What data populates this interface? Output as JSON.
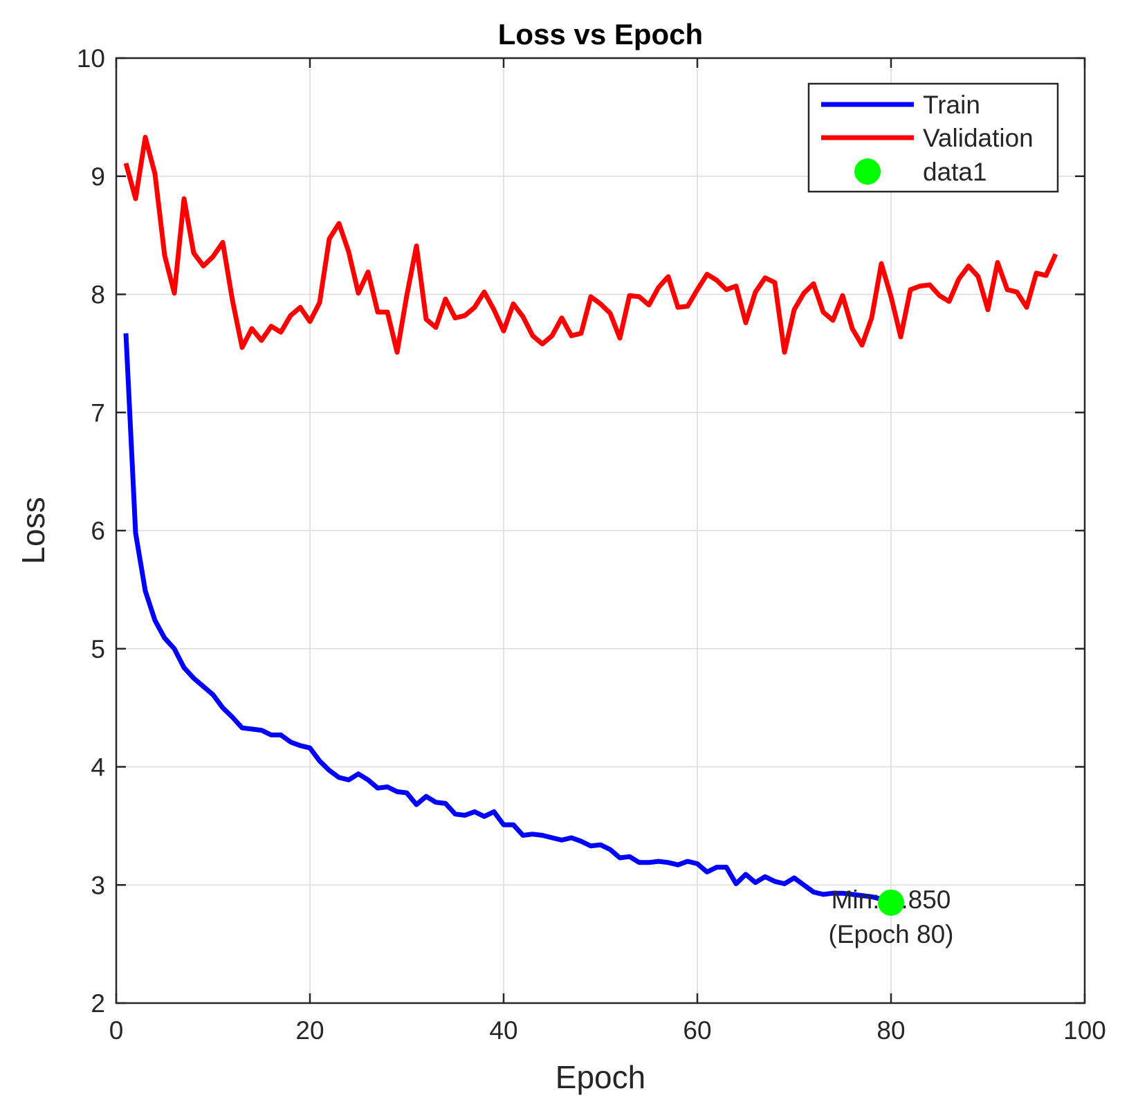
{
  "chart_data": {
    "type": "line",
    "title": "Loss vs Epoch",
    "xlabel": "Epoch",
    "ylabel": "Loss",
    "xlim": [
      0,
      100
    ],
    "ylim": [
      2,
      10
    ],
    "xticks": [
      0,
      20,
      40,
      60,
      80,
      100
    ],
    "yticks": [
      2,
      3,
      4,
      5,
      6,
      7,
      8,
      9,
      10
    ],
    "grid": true,
    "legend_position": "top-right",
    "series": [
      {
        "name": "Train",
        "color": "#0000ff",
        "x": [
          1,
          2,
          3,
          4,
          5,
          6,
          7,
          8,
          9,
          10,
          11,
          12,
          13,
          14,
          15,
          16,
          17,
          18,
          19,
          20,
          21,
          22,
          23,
          24,
          25,
          26,
          27,
          28,
          29,
          30,
          31,
          32,
          33,
          34,
          35,
          36,
          37,
          38,
          39,
          40,
          41,
          42,
          43,
          44,
          45,
          46,
          47,
          48,
          49,
          50,
          51,
          52,
          53,
          54,
          55,
          56,
          57,
          58,
          59,
          60,
          61,
          62,
          63,
          64,
          65,
          66,
          67,
          68,
          69,
          70,
          71,
          72,
          73,
          74,
          75,
          76,
          77,
          78,
          79,
          80
        ],
        "values": [
          7.67,
          5.98,
          5.49,
          5.24,
          5.09,
          5.0,
          4.84,
          4.75,
          4.68,
          4.61,
          4.5,
          4.42,
          4.33,
          4.32,
          4.31,
          4.27,
          4.27,
          4.21,
          4.18,
          4.16,
          4.05,
          3.97,
          3.91,
          3.89,
          3.94,
          3.89,
          3.82,
          3.83,
          3.79,
          3.78,
          3.68,
          3.75,
          3.7,
          3.69,
          3.6,
          3.59,
          3.62,
          3.58,
          3.62,
          3.51,
          3.51,
          3.42,
          3.43,
          3.42,
          3.4,
          3.38,
          3.4,
          3.37,
          3.33,
          3.34,
          3.3,
          3.23,
          3.24,
          3.19,
          3.19,
          3.2,
          3.19,
          3.17,
          3.2,
          3.18,
          3.11,
          3.15,
          3.15,
          3.01,
          3.09,
          3.02,
          3.07,
          3.03,
          3.01,
          3.06,
          3.0,
          2.94,
          2.92,
          2.93,
          2.93,
          2.92,
          2.91,
          2.9,
          2.88,
          2.85
        ]
      },
      {
        "name": "Validation",
        "color": "#ff0000",
        "x": [
          1,
          2,
          3,
          4,
          5,
          6,
          7,
          8,
          9,
          10,
          11,
          12,
          13,
          14,
          15,
          16,
          17,
          18,
          19,
          20,
          21,
          22,
          23,
          24,
          25,
          26,
          27,
          28,
          29,
          30,
          31,
          32,
          33,
          34,
          35,
          36,
          37,
          38,
          39,
          40,
          41,
          42,
          43,
          44,
          45,
          46,
          47,
          48,
          49,
          50,
          51,
          52,
          53,
          54,
          55,
          56,
          57,
          58,
          59,
          60,
          61,
          62,
          63,
          64,
          65,
          66,
          67,
          68,
          69,
          70,
          71,
          72,
          73,
          74,
          75,
          76,
          77,
          78,
          79,
          80,
          81,
          82,
          83,
          84,
          85,
          86,
          87,
          88,
          89,
          90,
          91,
          92,
          93,
          94,
          95,
          96,
          97
        ],
        "values": [
          9.11,
          8.81,
          9.33,
          9.02,
          8.33,
          8.01,
          8.81,
          8.35,
          8.24,
          8.32,
          8.44,
          7.95,
          7.55,
          7.71,
          7.61,
          7.73,
          7.68,
          7.82,
          7.89,
          7.77,
          7.93,
          8.47,
          8.6,
          8.36,
          8.01,
          8.19,
          7.85,
          7.85,
          7.51,
          7.99,
          8.41,
          7.79,
          7.72,
          7.96,
          7.8,
          7.82,
          7.89,
          8.02,
          7.87,
          7.69,
          7.92,
          7.81,
          7.65,
          7.58,
          7.65,
          7.8,
          7.65,
          7.67,
          7.98,
          7.92,
          7.84,
          7.63,
          7.99,
          7.98,
          7.91,
          8.06,
          8.15,
          7.89,
          7.9,
          8.04,
          8.17,
          8.12,
          8.04,
          8.07,
          7.76,
          8.02,
          8.14,
          8.1,
          7.51,
          7.87,
          8.01,
          8.09,
          7.85,
          7.78,
          7.99,
          7.71,
          7.57,
          7.8,
          8.26,
          7.98,
          7.64,
          8.04,
          8.07,
          8.08,
          7.99,
          7.94,
          8.13,
          8.24,
          8.15,
          7.87,
          8.27,
          8.04,
          8.02,
          7.89,
          8.18,
          8.16,
          8.34
        ]
      },
      {
        "name": "data1",
        "color": "#00ff00",
        "type": "scatter",
        "x": [
          80
        ],
        "values": [
          2.85
        ]
      }
    ],
    "annotation": {
      "lines": [
        "Min: 2.850",
        "(Epoch 80)"
      ],
      "x": 80,
      "y": 2.85
    }
  }
}
